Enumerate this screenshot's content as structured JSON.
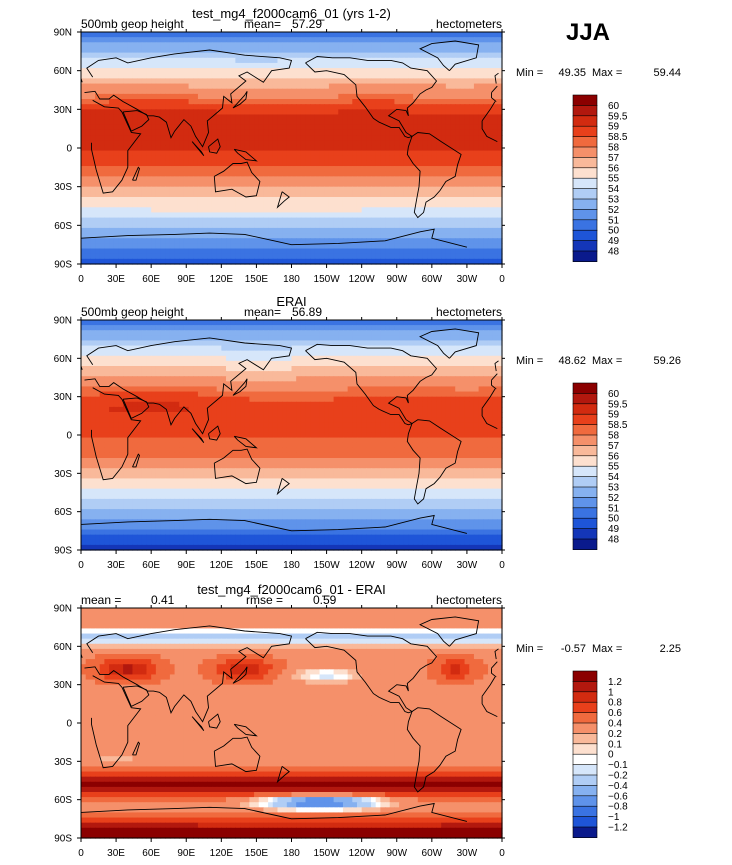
{
  "season_label": "JJA",
  "chart_data": [
    {
      "type": "heatmap",
      "title": "test_mg4_f2000cam6_01 (yrs 1-2)",
      "variable_label": "500mb geop height",
      "mean_label": "mean=",
      "mean_value": "57.29",
      "units": "hectometers",
      "min_label": "Min =",
      "min_value": "49.35",
      "max_label": "Max =",
      "max_value": "59.44",
      "x_tick_labels": [
        "0",
        "30E",
        "60E",
        "90E",
        "120E",
        "150E",
        "180",
        "150W",
        "120W",
        "90W",
        "60W",
        "30W",
        "0"
      ],
      "y_tick_labels": [
        "90N",
        "60N",
        "30N",
        "0",
        "30S",
        "60S",
        "90S"
      ],
      "colorbar_levels": [
        "60",
        "59.5",
        "59",
        "58.5",
        "58",
        "57",
        "56",
        "55",
        "54",
        "53",
        "52",
        "51",
        "50",
        "49",
        "48"
      ],
      "colorbar_colors": [
        "#8b0000",
        "#b2180e",
        "#d22b10",
        "#e8401b",
        "#f06a3e",
        "#f5906a",
        "#f9b99a",
        "#fde0cf",
        "#d6e6fa",
        "#b0cdf5",
        "#86b1f0",
        "#5f93ea",
        "#3a73e2",
        "#1e55d8",
        "#1436b8",
        "#0a1a8c"
      ],
      "field": "z500_model"
    },
    {
      "type": "heatmap",
      "title": "ERAI",
      "variable_label": "500mb geop height",
      "mean_label": "mean=",
      "mean_value": "56.89",
      "units": "hectometers",
      "min_label": "Min =",
      "min_value": "48.62",
      "max_label": "Max =",
      "max_value": "59.26",
      "x_tick_labels": [
        "0",
        "30E",
        "60E",
        "90E",
        "120E",
        "150E",
        "180",
        "150W",
        "120W",
        "90W",
        "60W",
        "30W",
        "0"
      ],
      "y_tick_labels": [
        "90N",
        "60N",
        "30N",
        "0",
        "30S",
        "60S",
        "90S"
      ],
      "colorbar_levels": [
        "60",
        "59.5",
        "59",
        "58.5",
        "58",
        "57",
        "56",
        "55",
        "54",
        "53",
        "52",
        "51",
        "50",
        "49",
        "48"
      ],
      "colorbar_colors": [
        "#8b0000",
        "#b2180e",
        "#d22b10",
        "#e8401b",
        "#f06a3e",
        "#f5906a",
        "#f9b99a",
        "#fde0cf",
        "#d6e6fa",
        "#b0cdf5",
        "#86b1f0",
        "#5f93ea",
        "#3a73e2",
        "#1e55d8",
        "#1436b8",
        "#0a1a8c"
      ],
      "field": "z500_obs"
    },
    {
      "type": "heatmap",
      "title": "test_mg4_f2000cam6_01 - ERAI",
      "variable_label": "",
      "mean_label": "mean =",
      "mean_value": "0.41",
      "rmse_label": "rmse =",
      "rmse_value": "0.59",
      "units": "hectometers",
      "min_label": "Min =",
      "min_value": "-0.57",
      "max_label": "Max =",
      "max_value": "2.25",
      "x_tick_labels": [
        "0",
        "30E",
        "60E",
        "90E",
        "120E",
        "150E",
        "180",
        "150W",
        "120W",
        "90W",
        "60W",
        "30W",
        "0"
      ],
      "y_tick_labels": [
        "90N",
        "60N",
        "30N",
        "0",
        "30S",
        "60S",
        "90S"
      ],
      "colorbar_levels": [
        "1.2",
        "1",
        "0.8",
        "0.6",
        "0.4",
        "0.2",
        "0.1",
        "0",
        "−0.1",
        "−0.2",
        "−0.4",
        "−0.6",
        "−0.8",
        "−1",
        "−1.2"
      ],
      "colorbar_colors": [
        "#8b0000",
        "#b2180e",
        "#d22b10",
        "#e8401b",
        "#f06a3e",
        "#f5906a",
        "#f9b99a",
        "#fde0cf",
        "#ffffff",
        "#d6e6fa",
        "#b0cdf5",
        "#86b1f0",
        "#5f93ea",
        "#3a73e2",
        "#1e55d8",
        "#0a1a8c"
      ],
      "field": "z500_diff"
    }
  ]
}
